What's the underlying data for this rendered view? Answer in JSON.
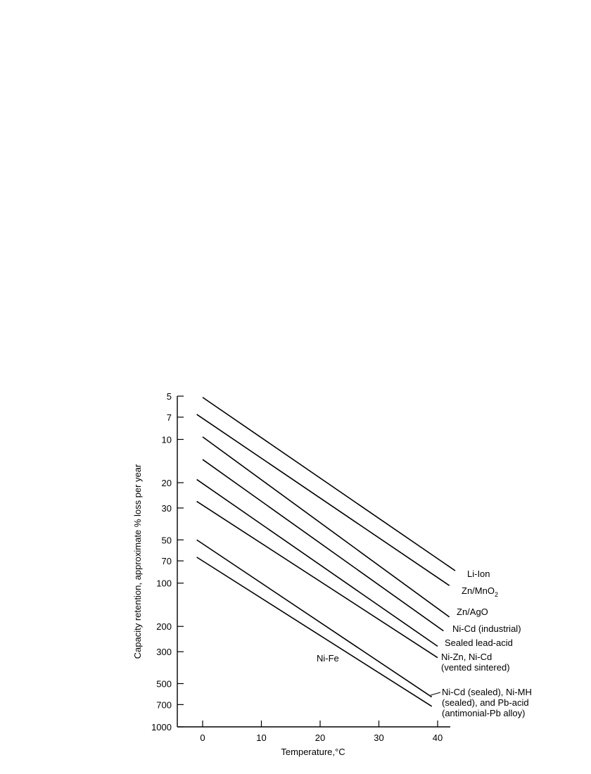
{
  "chart_data": {
    "type": "line",
    "title": "",
    "xlabel": "Temperature,°C",
    "ylabel": "Capacity retention, approximate % loss per year",
    "x_ticks": [
      0,
      10,
      20,
      30,
      40
    ],
    "y_ticks": [
      5,
      7,
      10,
      20,
      30,
      50,
      70,
      100,
      200,
      300,
      500,
      700,
      1000
    ],
    "y_scale": "log",
    "y_inverted": true,
    "xlim": [
      -4,
      42
    ],
    "ylim": [
      5,
      1000
    ],
    "grid": false,
    "series": [
      {
        "name": "Li-Ion",
        "x": [
          0,
          43
        ],
        "y": [
          5.1,
          82
        ],
        "label_lines": [
          "Li-Ion"
        ]
      },
      {
        "name": "Zn/MnO2",
        "x": [
          -1,
          42
        ],
        "y": [
          6.7,
          104
        ],
        "label_lines": [
          "Zn/MnO2"
        ]
      },
      {
        "name": "Zn/AgO",
        "x": [
          0,
          42
        ],
        "y": [
          9.6,
          172
        ],
        "label_lines": [
          "Zn/AgO"
        ]
      },
      {
        "name": "Ni-Cd (industrial)",
        "x": [
          0,
          41
        ],
        "y": [
          13.8,
          215
        ],
        "label_lines": [
          "Ni-Cd (industrial)"
        ]
      },
      {
        "name": "Sealed lead-acid",
        "x": [
          -1,
          40
        ],
        "y": [
          19,
          275
        ],
        "label_lines": [
          "Sealed lead-acid"
        ]
      },
      {
        "name": "Ni-Zn, Ni-Cd (vented sintered)",
        "x": [
          -1,
          40
        ],
        "y": [
          27,
          330
        ],
        "label_lines": [
          "Ni-Zn, Ni-Cd",
          "(vented sintered)"
        ]
      },
      {
        "name": "Ni-Fe",
        "x": [
          -1,
          39
        ],
        "y": [
          50,
          620
        ],
        "label_lines": [
          "Ni-Fe"
        ]
      },
      {
        "name": "Ni-Cd (sealed), Ni-MH (sealed), and Pb-acid (antimonial-Pb alloy)",
        "x": [
          -1,
          39
        ],
        "y": [
          66,
          720
        ],
        "label_lines": [
          "Ni-Cd (sealed), Ni-MH",
          "(sealed), and Pb-acid",
          "(antimonial-Pb alloy)"
        ]
      }
    ]
  }
}
